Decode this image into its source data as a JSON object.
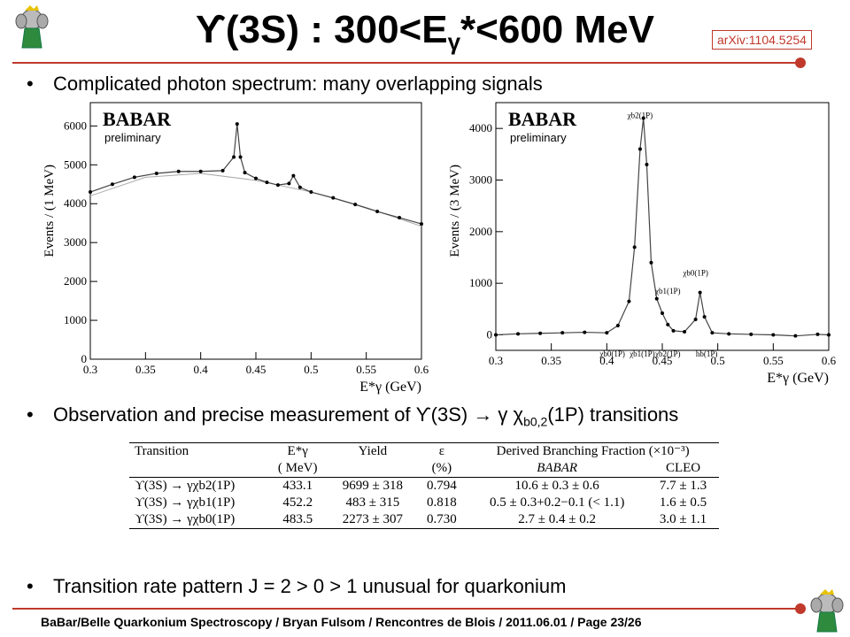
{
  "slide": {
    "title_main": "ϒ(3S) : 300<E",
    "title_sub": "γ",
    "title_tail": "*<600 MeV",
    "arxiv": "arXiv:1104.5254",
    "bullets": [
      "Complicated photon spectrum: many overlapping signals",
      "Observation and precise measurement of ϒ(3S) → γ χ",
      "Transition rate pattern  J = 2 > 0 > 1 unusual for quarkonium"
    ],
    "bullet2_sub": "b0,2",
    "bullet2_tail": "(1P) transitions",
    "footer": "BaBar/Belle Quarkonium Spectroscopy  /  Bryan Fulsom  /  Rencontres de Blois  /  2011.06.01  /  Page 23/26",
    "accent": "#c0392b"
  },
  "table": {
    "header": [
      "Transition",
      "E*γ",
      "Yield",
      "ε",
      "Derived Branching Fraction (×10⁻³)"
    ],
    "subheader": [
      "",
      "( MeV)",
      "",
      "(%)",
      "BABAR",
      "CLEO"
    ],
    "rows": [
      {
        "transition": "ϒ(3S) → γχb2(1P)",
        "e": "433.1",
        "yield": "9699 ± 318",
        "eff": "0.794",
        "babar": "10.6 ± 0.3 ± 0.6",
        "cleo": "7.7 ± 1.3"
      },
      {
        "transition": "ϒ(3S) → γχb1(1P)",
        "e": "452.2",
        "yield": "483 ± 315",
        "eff": "0.818",
        "babar": "0.5 ± 0.3+0.2−0.1 (< 1.1)",
        "cleo": "1.6 ± 0.5"
      },
      {
        "transition": "ϒ(3S) → γχb0(1P)",
        "e": "483.5",
        "yield": "2273 ± 307",
        "eff": "0.730",
        "babar": "2.7 ± 0.4 ± 0.2",
        "cleo": "3.0 ± 1.1"
      }
    ]
  },
  "chart_data": [
    {
      "type": "scatter",
      "logo": "BABAR",
      "note": "preliminary",
      "xlabel": "E*γ (GeV)",
      "ylabel": "Events / (1 MeV)",
      "xlim": [
        0.3,
        0.6
      ],
      "ylim": [
        0,
        6600
      ],
      "xticks": [
        "0.3",
        "0.35",
        "0.4",
        "0.45",
        "0.5",
        "0.55",
        "0.6"
      ],
      "yticks": [
        "0",
        "1000",
        "2000",
        "3000",
        "4000",
        "5000",
        "6000"
      ],
      "xtickvals": [
        0.3,
        0.35,
        0.4,
        0.45,
        0.5,
        0.55,
        0.6
      ],
      "ytickvals": [
        0,
        1000,
        2000,
        3000,
        4000,
        5000,
        6000
      ],
      "series": [
        {
          "x": [
            0.3,
            0.32,
            0.34,
            0.36,
            0.38,
            0.4,
            0.42,
            0.43,
            0.433,
            0.436,
            0.44,
            0.45,
            0.46,
            0.47,
            0.48,
            0.484,
            0.49,
            0.5,
            0.52,
            0.54,
            0.56,
            0.58,
            0.6
          ],
          "y": [
            4300,
            4500,
            4680,
            4780,
            4830,
            4830,
            4850,
            5200,
            6050,
            5200,
            4800,
            4650,
            4550,
            4480,
            4520,
            4720,
            4420,
            4300,
            4150,
            3980,
            3800,
            3640,
            3480
          ]
        }
      ],
      "background": {
        "x": [
          0.3,
          0.35,
          0.4,
          0.45,
          0.5,
          0.55,
          0.6
        ],
        "y": [
          4200,
          4680,
          4780,
          4600,
          4300,
          3900,
          3420
        ]
      }
    },
    {
      "type": "scatter",
      "logo": "BABAR",
      "note": "preliminary",
      "xlabel": "E*γ (GeV)",
      "ylabel": "Events / (3 MeV)",
      "xlim": [
        0.3,
        0.6
      ],
      "ylim": [
        -300,
        4500
      ],
      "xticks": [
        "0.3",
        "0.35",
        "0.4",
        "0.45",
        "0.5",
        "0.55",
        "0.6"
      ],
      "yticks": [
        "0",
        "1000",
        "2000",
        "3000",
        "4000"
      ],
      "xtickvals": [
        0.3,
        0.35,
        0.4,
        0.45,
        0.5,
        0.55,
        0.6
      ],
      "ytickvals": [
        0,
        1000,
        2000,
        3000,
        4000
      ],
      "series": [
        {
          "x": [
            0.3,
            0.32,
            0.34,
            0.36,
            0.38,
            0.4,
            0.41,
            0.42,
            0.425,
            0.43,
            0.433,
            0.436,
            0.44,
            0.445,
            0.45,
            0.455,
            0.46,
            0.47,
            0.48,
            0.484,
            0.488,
            0.495,
            0.51,
            0.53,
            0.55,
            0.57,
            0.59,
            0.6
          ],
          "y": [
            0,
            20,
            30,
            40,
            50,
            40,
            180,
            650,
            1700,
            3600,
            4200,
            3300,
            1400,
            700,
            420,
            200,
            80,
            60,
            300,
            820,
            350,
            40,
            20,
            10,
            0,
            -20,
            10,
            0
          ]
        }
      ],
      "annotations": [
        {
          "text": "χb2(1P)",
          "x": 0.43,
          "y": 4200
        },
        {
          "text": "χb1(1P)",
          "x": 0.455,
          "y": 800
        },
        {
          "text": "χb0(1P)",
          "x": 0.48,
          "y": 1150
        },
        {
          "text": "χb0(1P)",
          "x": 0.405,
          "y": -420
        },
        {
          "text": "χb1(1P)",
          "x": 0.432,
          "y": -420
        },
        {
          "text": "χb2(1P)",
          "x": 0.455,
          "y": -420
        },
        {
          "text": "hb(1P)",
          "x": 0.49,
          "y": -420
        }
      ]
    }
  ]
}
